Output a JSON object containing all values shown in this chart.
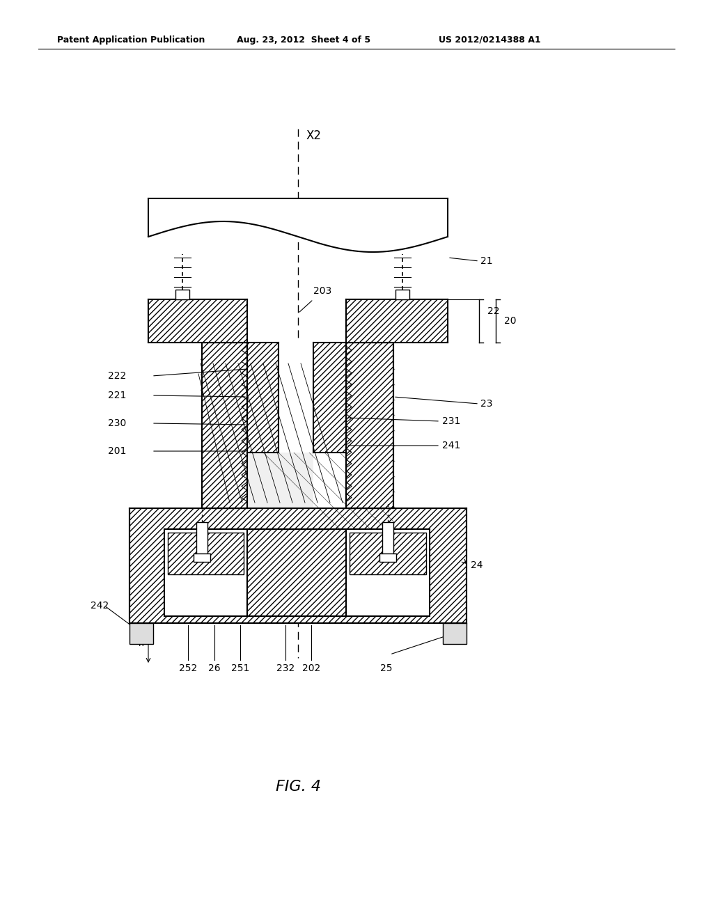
{
  "bg_color": "#ffffff",
  "lc": "#000000",
  "header_left": "Patent Application Publication",
  "header_mid": "Aug. 23, 2012  Sheet 4 of 5",
  "header_right": "US 2012/0214388 A1",
  "fig_caption": "FIG. 4",
  "axis_label": "X2",
  "figsize": [
    10.24,
    13.2
  ],
  "dpi": 100
}
